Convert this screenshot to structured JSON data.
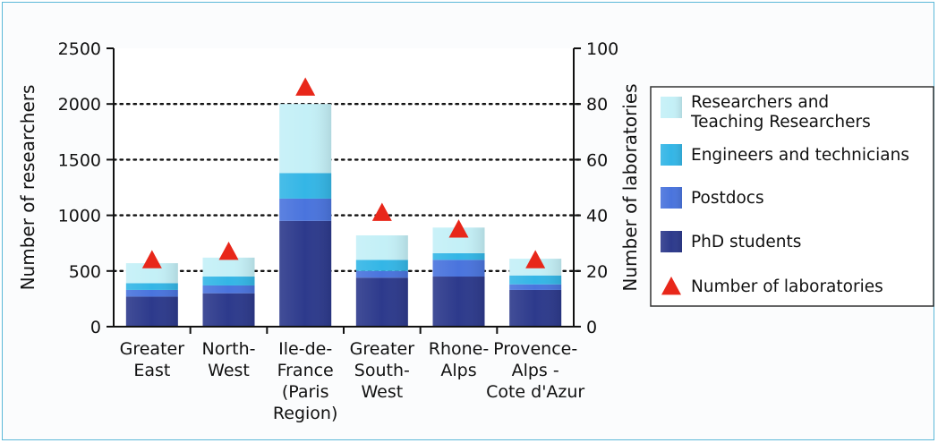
{
  "chart_data": {
    "type": "bar",
    "stacked": true,
    "categories": [
      [
        "Greater",
        "East"
      ],
      [
        "North-",
        "West"
      ],
      [
        "Ile-de-",
        "France",
        "(Paris",
        "Region)"
      ],
      [
        "Greater",
        "South-",
        "West"
      ],
      [
        "Rhone-",
        "Alps"
      ],
      [
        "Provence-",
        "Alps -",
        "Cote d'Azur"
      ]
    ],
    "series": [
      {
        "name": "PhD students",
        "color": "#2d3a8c",
        "values": [
          270,
          300,
          950,
          440,
          450,
          330
        ]
      },
      {
        "name": "Postdocs",
        "color": "#4a74dd",
        "values": [
          60,
          70,
          200,
          60,
          150,
          50
        ]
      },
      {
        "name": "Engineers and technicians",
        "color": "#34b6e6",
        "values": [
          60,
          80,
          230,
          100,
          60,
          80
        ]
      },
      {
        "name": "Researchers and Teaching Researchers",
        "color": "#c4f0f7",
        "values": [
          180,
          170,
          620,
          220,
          230,
          150
        ]
      }
    ],
    "secondary_series": {
      "name": "Number of laboratories",
      "color": "#e8271a",
      "marker": "triangle",
      "values": [
        24,
        27,
        86,
        41,
        35,
        24
      ]
    },
    "y_left": {
      "label": "Number of researchers",
      "ylim": [
        0,
        2500
      ],
      "ticks": [
        "0",
        "500",
        "1000",
        "1500",
        "2000",
        "2500"
      ]
    },
    "y_right": {
      "label": "Number of laboratories",
      "ylim": [
        0,
        100
      ],
      "ticks": [
        "0",
        "20",
        "40",
        "60",
        "80",
        "100"
      ]
    },
    "grid": "dotted horizontal at 500, 1000, 1500, 2000",
    "legend": {
      "placement": "right",
      "entries": [
        {
          "label_lines": [
            "Researchers and",
            "Teaching Researchers"
          ],
          "swatch": "#c4f0f7",
          "marker": "square"
        },
        {
          "label_lines": [
            "Engineers and technicians"
          ],
          "swatch": "#34b6e6",
          "marker": "square"
        },
        {
          "label_lines": [
            "Postdocs"
          ],
          "swatch": "#4a74dd",
          "marker": "square"
        },
        {
          "label_lines": [
            "PhD students"
          ],
          "swatch": "#2d3a8c",
          "marker": "square"
        },
        {
          "label_lines": [
            "Number of laboratories"
          ],
          "swatch": "#e8271a",
          "marker": "triangle"
        }
      ]
    }
  }
}
